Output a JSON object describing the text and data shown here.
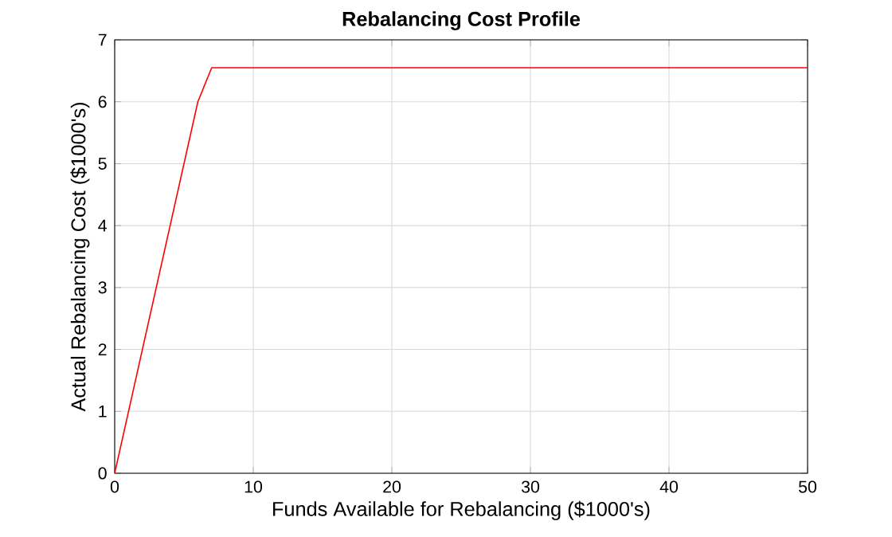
{
  "chart_data": {
    "type": "line",
    "title": "Rebalancing Cost Profile",
    "xlabel": "Funds Available for Rebalancing ($1000's)",
    "ylabel": "Actual Rebalancing Cost ($1000's)",
    "x": [
      0,
      6,
      7,
      50
    ],
    "series": [
      {
        "color": "#ff0000",
        "values": [
          0,
          6,
          6.55,
          6.55
        ]
      }
    ],
    "xlim": [
      0,
      50
    ],
    "ylim": [
      0,
      7
    ],
    "xticks": [
      0,
      10,
      20,
      30,
      40,
      50
    ],
    "yticks": [
      0,
      1,
      2,
      3,
      4,
      5,
      6,
      7
    ],
    "grid": true,
    "marker": "none",
    "line_style": "solid"
  }
}
